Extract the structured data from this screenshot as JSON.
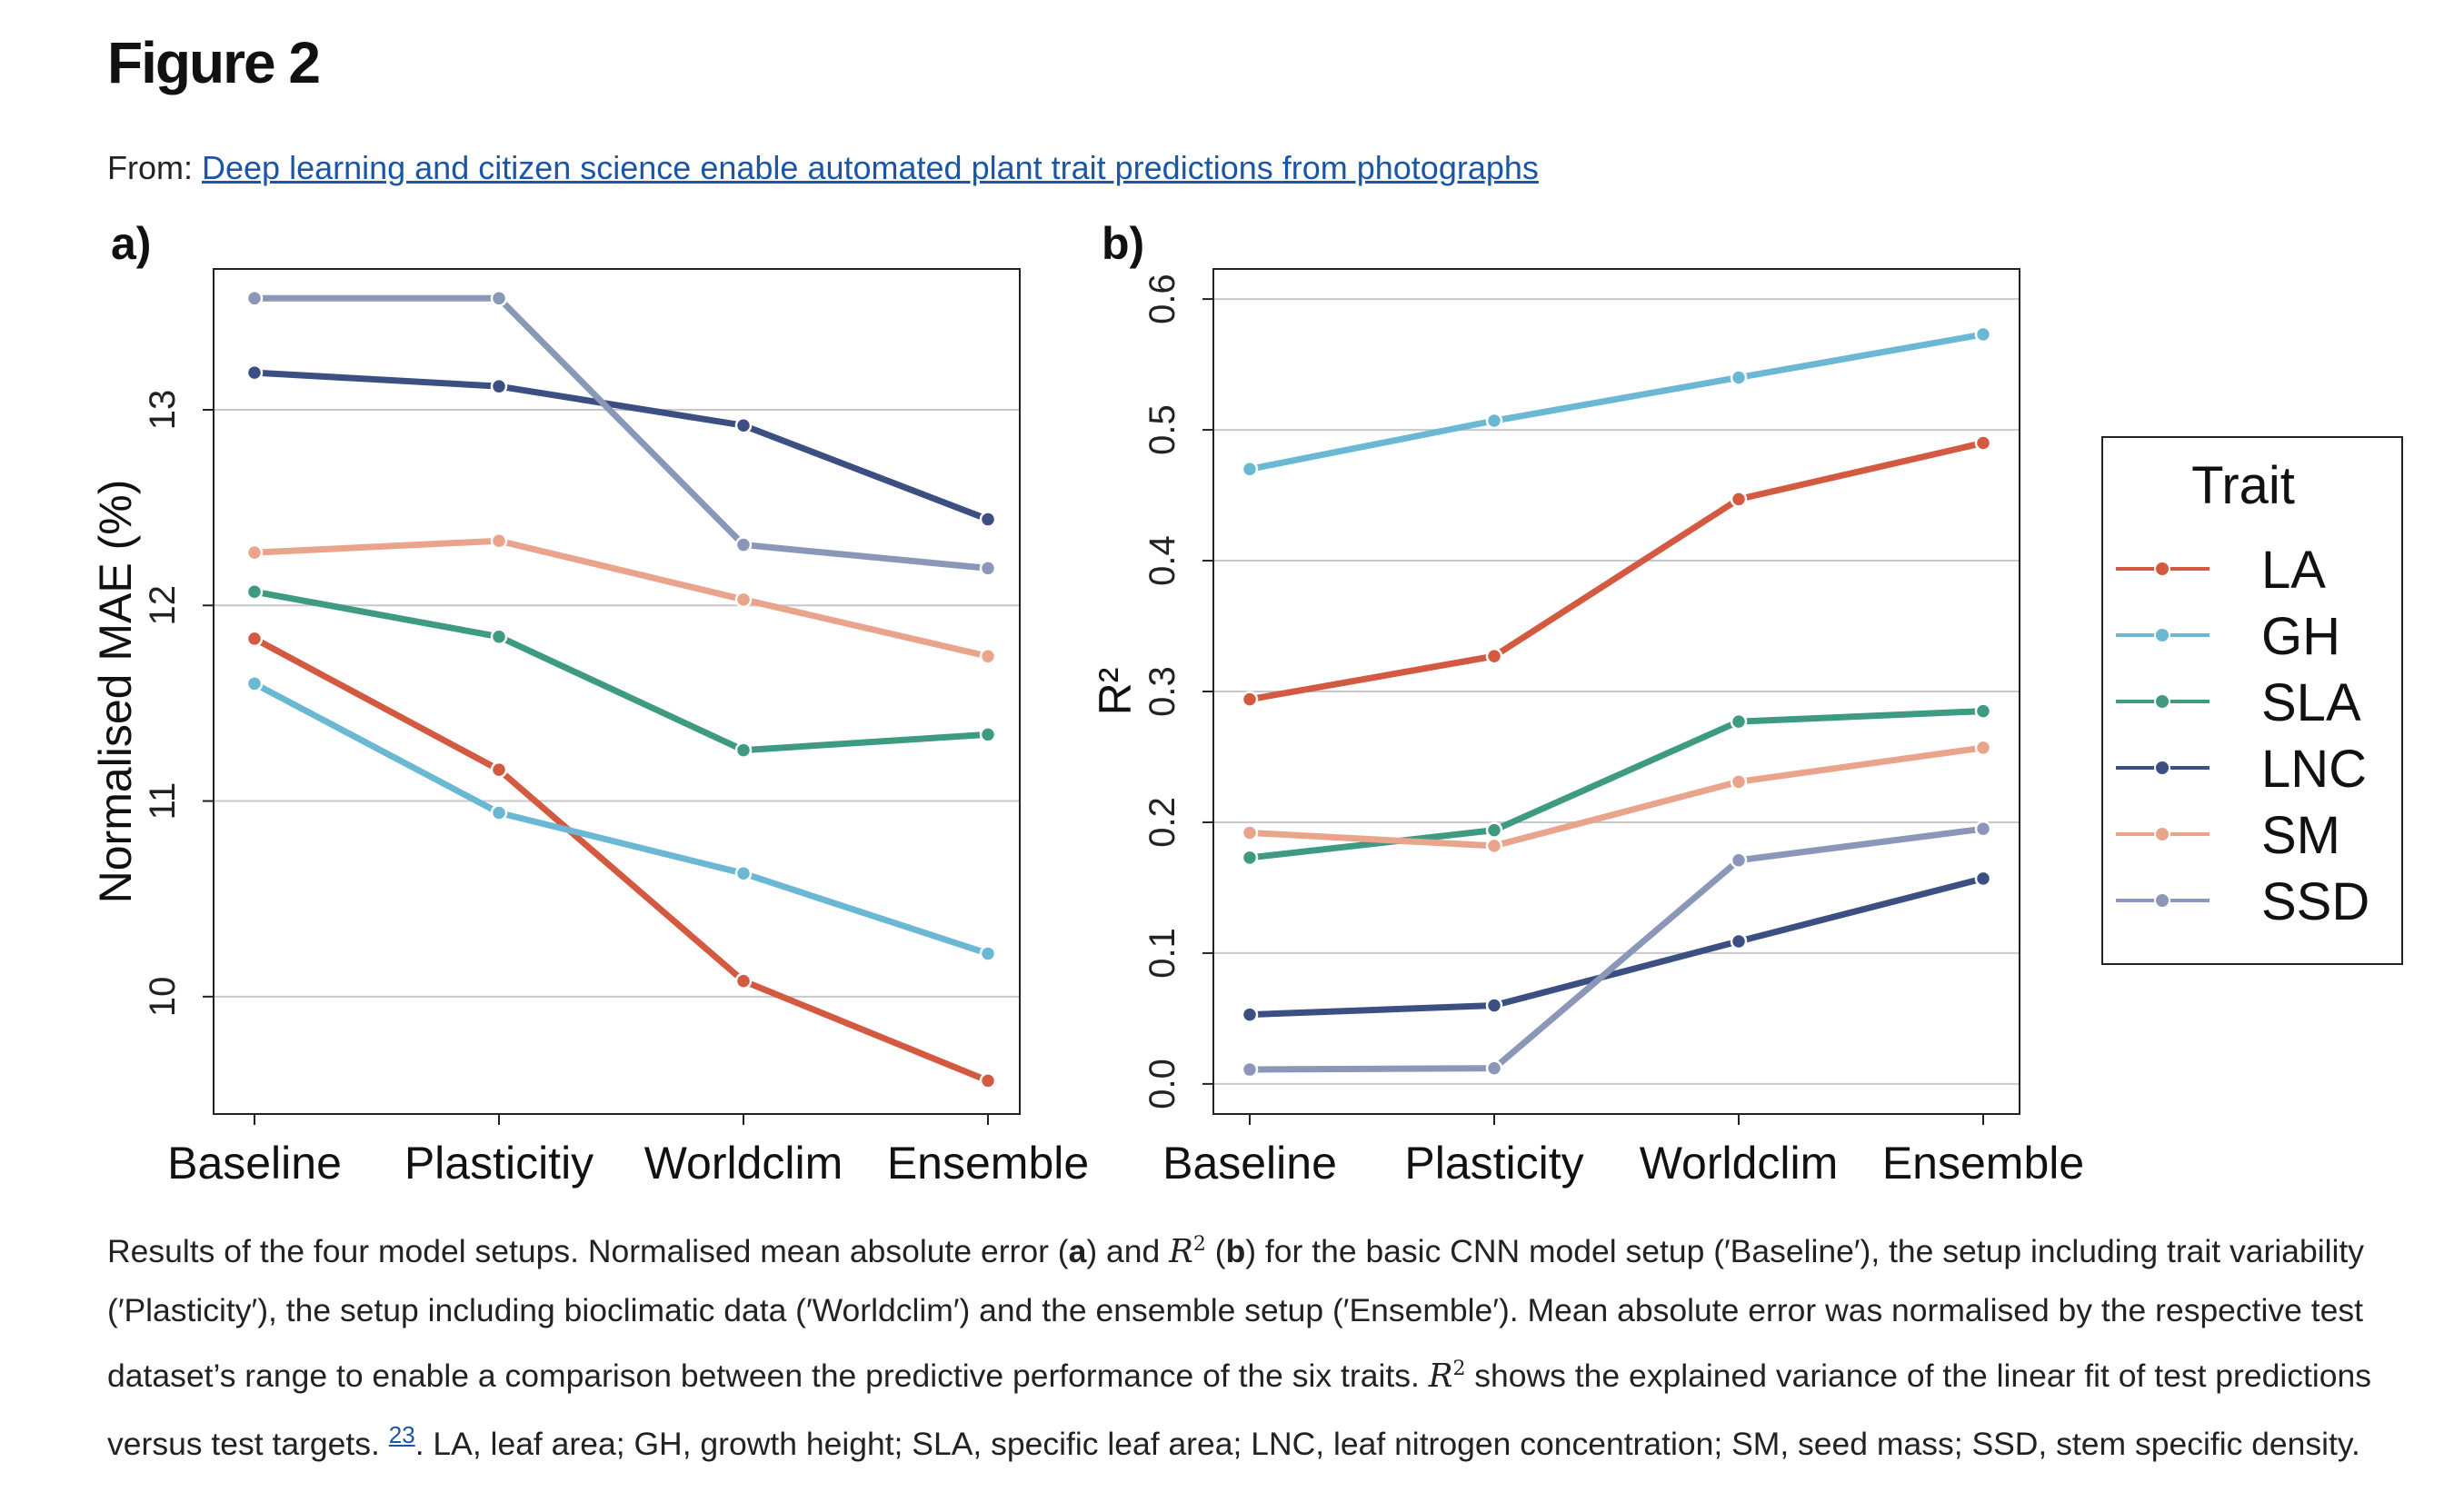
{
  "figure_title": "Figure 2",
  "source": {
    "prefix": "From: ",
    "link_text": "Deep learning and citizen science enable automated plant trait predictions from photographs"
  },
  "legend": {
    "title": "Trait",
    "items": [
      {
        "name": "LA",
        "color": "#d35a41"
      },
      {
        "name": "GH",
        "color": "#6ab8d4"
      },
      {
        "name": "SLA",
        "color": "#3e9a80"
      },
      {
        "name": "LNC",
        "color": "#3b4f82"
      },
      {
        "name": "SM",
        "color": "#e9a48b"
      },
      {
        "name": "SSD",
        "color": "#8b97b8"
      }
    ]
  },
  "chart_data": [
    {
      "type": "line",
      "panel_label": "a)",
      "ylabel": "Normalised MAE (%)",
      "xlabel": "",
      "categories": [
        "Baseline",
        "Plasticitiy",
        "Worldclim",
        "Ensemble"
      ],
      "ylim": [
        9.4,
        13.72
      ],
      "yticks": [
        10,
        11,
        12,
        13
      ],
      "grid": true,
      "series": [
        {
          "name": "LA",
          "values": [
            11.83,
            11.16,
            10.08,
            9.57
          ]
        },
        {
          "name": "GH",
          "values": [
            11.6,
            10.94,
            10.63,
            10.22
          ]
        },
        {
          "name": "SLA",
          "values": [
            12.07,
            11.84,
            11.26,
            11.34
          ]
        },
        {
          "name": "LNC",
          "values": [
            13.19,
            13.12,
            12.92,
            12.44
          ]
        },
        {
          "name": "SM",
          "values": [
            12.27,
            12.33,
            12.03,
            11.74
          ]
        },
        {
          "name": "SSD",
          "values": [
            13.57,
            13.57,
            12.31,
            12.19
          ]
        }
      ]
    },
    {
      "type": "line",
      "panel_label": "b)",
      "ylabel": "R²",
      "xlabel": "",
      "categories": [
        "Baseline",
        "Plasticity",
        "Worldclim",
        "Ensemble"
      ],
      "ylim": [
        -0.023,
        0.623
      ],
      "yticks": [
        "0.0",
        "0.1",
        "0.2",
        "0.3",
        "0.4",
        "0.5",
        "0.6"
      ],
      "grid": true,
      "legend_position": "right",
      "series": [
        {
          "name": "LA",
          "values": [
            0.294,
            0.327,
            0.447,
            0.49
          ]
        },
        {
          "name": "GH",
          "values": [
            0.47,
            0.507,
            0.54,
            0.573
          ]
        },
        {
          "name": "SLA",
          "values": [
            0.173,
            0.194,
            0.277,
            0.285
          ]
        },
        {
          "name": "LNC",
          "values": [
            0.053,
            0.06,
            0.109,
            0.157
          ]
        },
        {
          "name": "SM",
          "values": [
            0.192,
            0.182,
            0.231,
            0.257
          ]
        },
        {
          "name": "SSD",
          "values": [
            0.011,
            0.012,
            0.171,
            0.195
          ]
        }
      ]
    }
  ],
  "caption": {
    "p1": "Results of the four model setups. Normalised mean absolute error (",
    "a": "a",
    "p2": ") and ",
    "r2_letter": "R",
    "r2_sup": "2",
    "p3": " (",
    "b": "b",
    "p4": ") for the basic CNN model setup (′Baseline′), the setup including trait variability (′Plasticity′), the setup including bioclimatic data (′Worldclim′) and the ensemble setup (′Ensemble′). Mean absolute error was normalised by the respective test dataset’s range to enable a comparison between the predictive performance of the six traits. ",
    "p5": " shows the explained variance of the linear fit of test predictions versus test targets. ",
    "ref": "23",
    "p6": ". LA, leaf area; GH, growth height; SLA, specific leaf area; LNC, leaf nitrogen concentration; SM, seed mass; SSD, stem specific density."
  }
}
